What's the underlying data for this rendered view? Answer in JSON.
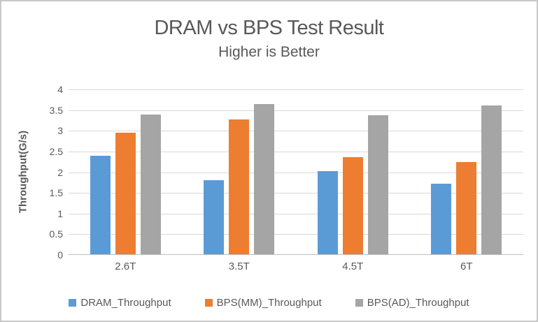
{
  "title": "DRAM vs BPS Test Result",
  "subtitle": "Higher is Better",
  "colors": {
    "series_blue": "#5B9BD5",
    "series_orange": "#ED7D31",
    "series_gray": "#A5A5A5",
    "gridline": "#D9D9D9",
    "axis_line": "#BFBFBF",
    "text": "#595959",
    "frame_border": "#C8C8C8"
  },
  "chart_data": {
    "type": "bar",
    "title": "DRAM vs BPS Test Result",
    "subtitle": "Higher is Better",
    "xlabel": "",
    "ylabel": "Throughput(G/s)",
    "categories": [
      "2.6T",
      "3.5T",
      "4.5T",
      "6T"
    ],
    "series": [
      {
        "name": "DRAM_Throughput",
        "color": "#5B9BD5",
        "values": [
          2.4,
          1.8,
          2.03,
          1.72
        ]
      },
      {
        "name": "BPS(MM)_Throughput",
        "color": "#ED7D31",
        "values": [
          2.95,
          3.27,
          2.37,
          2.24
        ]
      },
      {
        "name": "BPS(AD)_Throughput",
        "color": "#A5A5A5",
        "values": [
          3.4,
          3.64,
          3.37,
          3.62
        ]
      }
    ],
    "ylim": [
      0,
      4
    ],
    "ytick_step": 0.5,
    "ytick_labels": [
      "0",
      "0.5",
      "1",
      "1.5",
      "2",
      "2.5",
      "3",
      "3.5",
      "4"
    ],
    "grid": true,
    "legend_position": "bottom"
  }
}
